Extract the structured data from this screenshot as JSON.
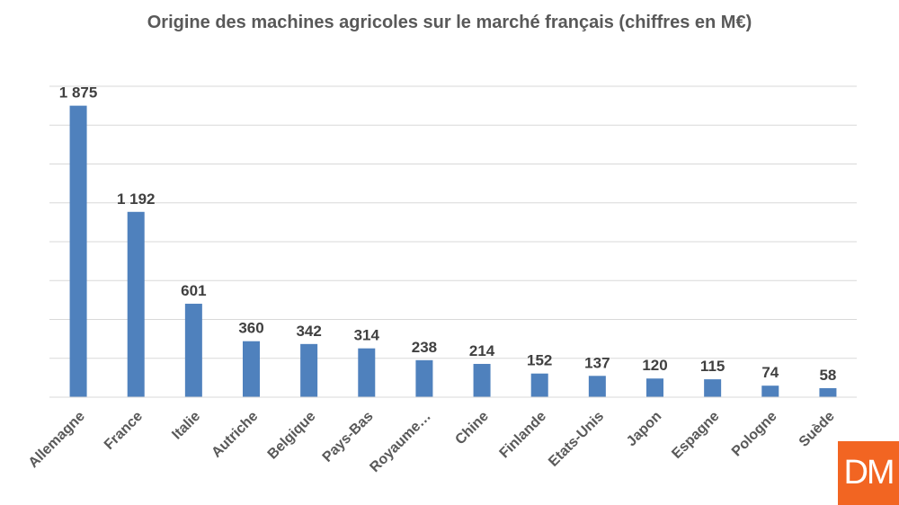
{
  "chart_data": {
    "type": "bar",
    "title": "Origine des machines agricoles sur le marché français (chiffres en M€)",
    "xlabel": "",
    "ylabel": "",
    "categories": [
      "Allemagne",
      "France",
      "Italie",
      "Autriche",
      "Belgique",
      "Pays-Bas",
      "Royaume…",
      "Chine",
      "Finlande",
      "Etats-Unis",
      "Japon",
      "Espagne",
      "Pologne",
      "Suède"
    ],
    "values": [
      1875,
      1192,
      601,
      360,
      342,
      314,
      238,
      214,
      152,
      137,
      120,
      115,
      74,
      58
    ],
    "value_labels": [
      "1 875",
      "1 192",
      "601",
      "360",
      "342",
      "314",
      "238",
      "214",
      "152",
      "137",
      "120",
      "115",
      "74",
      "58"
    ],
    "ylim": [
      0,
      2000
    ],
    "grid": true,
    "bar_color": "#4f81bd",
    "y_tick_labels_shown": false
  },
  "logo": {
    "text": "DM",
    "color": "#f26522"
  }
}
